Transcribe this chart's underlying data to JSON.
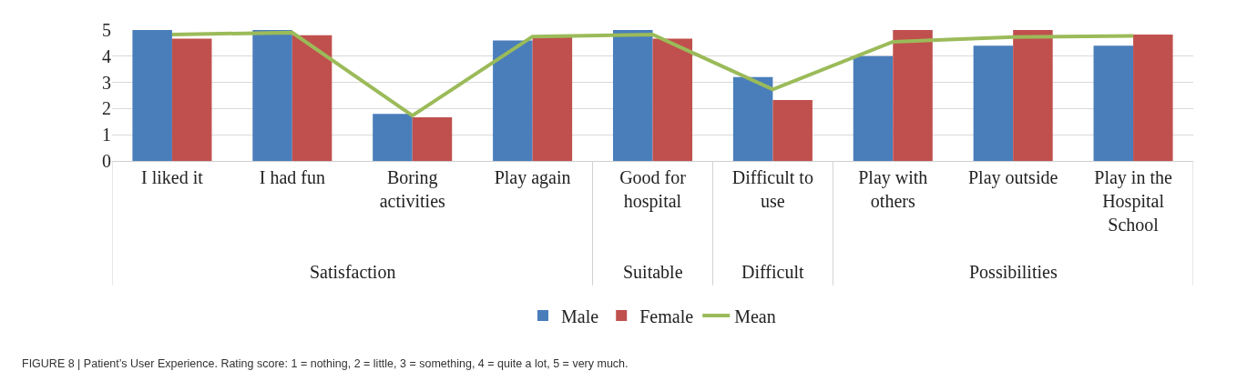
{
  "chart_data": {
    "type": "bar",
    "categories": [
      "I liked it",
      "I had fun",
      "Boring activities",
      "Play again",
      "Good for hospital",
      "Difficult to use",
      "Play with others",
      "Play outside",
      "Play in the Hospital School"
    ],
    "series": [
      {
        "name": "Male",
        "color": "#4a7ebb",
        "values": [
          5,
          5,
          1.8,
          4.6,
          5,
          3.2,
          4,
          4.4,
          4.4
        ]
      },
      {
        "name": "Female",
        "color": "#c0504d",
        "values": [
          4.67,
          4.8,
          1.67,
          4.75,
          4.67,
          2.33,
          5,
          5,
          4.83
        ]
      },
      {
        "name": "Mean",
        "type": "line",
        "color": "#9bbb59",
        "values": [
          4.83,
          4.9,
          1.73,
          4.75,
          4.83,
          2.73,
          4.55,
          4.73,
          4.77
        ]
      }
    ],
    "ylim": [
      0,
      5
    ],
    "yticks": [
      0,
      1,
      2,
      3,
      4,
      5
    ],
    "grid": "y",
    "legend": "bottom",
    "marker": "none",
    "line_style": "solid",
    "annotations": [
      "Satisfaction",
      "Suitable",
      "Difficult",
      "Possibilities",
      "FIGURE 8 | Patient’s User Experience. Rating score: 1 = nothing, 2 = little, 3 = something, 4 = quite a lot, 5 = very much."
    ]
  }
}
